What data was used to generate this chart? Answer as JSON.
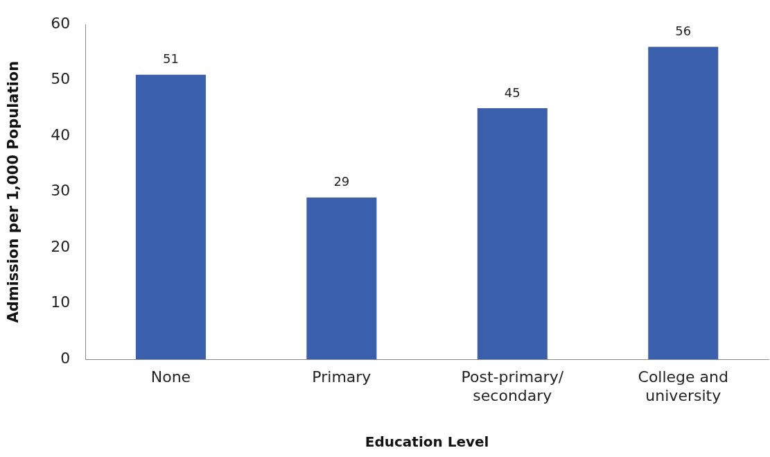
{
  "chart_data": {
    "type": "bar",
    "xlabel": "Education Level",
    "ylabel": "Admission per 1,000 Population",
    "categories": [
      "None",
      "Primary",
      "Post-primary/ secondary",
      "College and university"
    ],
    "values": [
      51,
      29,
      45,
      56
    ],
    "color": "#3a5fad",
    "ylim": [
      0,
      60
    ],
    "yticks": [
      0,
      10,
      20,
      30,
      40,
      50,
      60
    ],
    "grid": false,
    "legend": false,
    "data_labels": true
  }
}
